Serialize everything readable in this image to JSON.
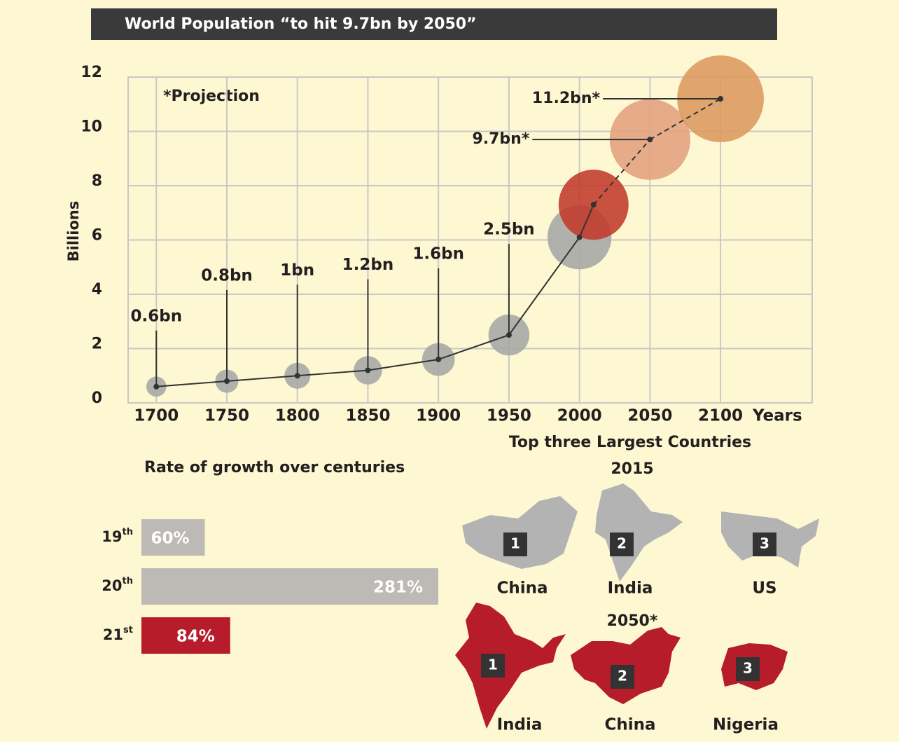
{
  "header": {
    "title": "World Population “to hit 9.7bn by 2050”"
  },
  "chart_data": {
    "type": "bubble-line",
    "ylabel": "Billions",
    "xlabel": "Years",
    "annotation": "*Projection",
    "x": [
      1700,
      1750,
      1800,
      1850,
      1900,
      1950,
      2000,
      2010,
      2050,
      2100
    ],
    "values": [
      0.6,
      0.8,
      1,
      1.2,
      1.6,
      2.5,
      6.1,
      7.3,
      9.7,
      11.2
    ],
    "value_labels": [
      "0.6bn",
      "0.8bn",
      "1bn",
      "1.2bn",
      "1.6bn",
      "2.5bn",
      null,
      null,
      "9.7bn*",
      "11.2bn*"
    ],
    "colors": [
      "#a6a6a6",
      "#a6a6a6",
      "#a6a6a6",
      "#a6a6a6",
      "#a6a6a6",
      "#a6a6a6",
      "#a6a6a6",
      "#c0392b",
      "#e2a07e",
      "#dc985e"
    ],
    "projected": [
      false,
      false,
      false,
      false,
      false,
      false,
      false,
      false,
      true,
      true
    ],
    "xlim": [
      1680,
      2165
    ],
    "xticks": [
      1700,
      1750,
      1800,
      1850,
      1900,
      1950,
      2000,
      2050,
      2100
    ],
    "ylim": [
      0,
      12
    ],
    "yticks": [
      0,
      2,
      4,
      6,
      8,
      10,
      12
    ],
    "grid": true
  },
  "growth": {
    "type": "hbar",
    "title": "Rate of growth over centuries",
    "categories": [
      {
        "number": "19",
        "suffix": "th"
      },
      {
        "number": "20",
        "suffix": "th"
      },
      {
        "number": "21",
        "suffix": "st"
      }
    ],
    "values": [
      60,
      281,
      84
    ],
    "value_labels": [
      "60%",
      "281%",
      "84%"
    ],
    "colors": [
      "#bdbab5",
      "#bdbab5",
      "#b71c2a"
    ]
  },
  "countries": {
    "title": "Top three Largest Countries",
    "groups": [
      {
        "year": "2015",
        "color": "#b3b3b3",
        "countries": [
          {
            "rank": 1,
            "name": "China"
          },
          {
            "rank": 2,
            "name": "India"
          },
          {
            "rank": 3,
            "name": "US"
          }
        ]
      },
      {
        "year": "2050*",
        "color": "#b71c2a",
        "countries": [
          {
            "rank": 1,
            "name": "India"
          },
          {
            "rank": 2,
            "name": "China"
          },
          {
            "rank": 3,
            "name": "Nigeria"
          }
        ]
      }
    ]
  }
}
